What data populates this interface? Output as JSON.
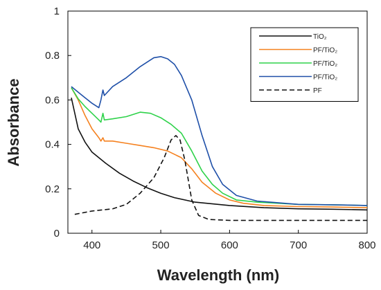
{
  "chart_data": {
    "type": "line",
    "title": "",
    "xlabel": "Wavelength (nm)",
    "ylabel": "Absorbance",
    "xlim": [
      365,
      800
    ],
    "ylim": [
      0,
      1
    ],
    "xticks": [
      400,
      500,
      600,
      700,
      800
    ],
    "yticks": [
      0,
      0.2,
      0.4,
      0.6,
      0.8,
      1
    ],
    "ytick_labels": [
      "0",
      "0.2",
      "0.4",
      "0.6",
      "0.8",
      "1"
    ],
    "grid": false,
    "legend_position": "top-right",
    "series": [
      {
        "name": "TiO₂",
        "color": "#111111",
        "dash": "solid",
        "points": [
          [
            370,
            0.61
          ],
          [
            380,
            0.47
          ],
          [
            390,
            0.41
          ],
          [
            400,
            0.365
          ],
          [
            420,
            0.315
          ],
          [
            440,
            0.27
          ],
          [
            460,
            0.235
          ],
          [
            480,
            0.205
          ],
          [
            500,
            0.18
          ],
          [
            520,
            0.16
          ],
          [
            550,
            0.14
          ],
          [
            600,
            0.125
          ],
          [
            650,
            0.115
          ],
          [
            700,
            0.11
          ],
          [
            750,
            0.108
          ],
          [
            800,
            0.105
          ]
        ]
      },
      {
        "name": "PF/TiO₂",
        "color": "#f5811f",
        "dash": "solid",
        "points": [
          [
            370,
            0.655
          ],
          [
            380,
            0.6
          ],
          [
            390,
            0.53
          ],
          [
            400,
            0.47
          ],
          [
            410,
            0.43
          ],
          [
            413,
            0.415
          ],
          [
            416,
            0.43
          ],
          [
            418,
            0.415
          ],
          [
            430,
            0.415
          ],
          [
            450,
            0.405
          ],
          [
            470,
            0.395
          ],
          [
            490,
            0.385
          ],
          [
            510,
            0.37
          ],
          [
            530,
            0.34
          ],
          [
            545,
            0.29
          ],
          [
            560,
            0.23
          ],
          [
            580,
            0.18
          ],
          [
            600,
            0.15
          ],
          [
            620,
            0.135
          ],
          [
            650,
            0.125
          ],
          [
            700,
            0.12
          ],
          [
            750,
            0.118
          ],
          [
            800,
            0.115
          ]
        ]
      },
      {
        "name": "PF/TiO₂",
        "color": "#2ed24a",
        "dash": "solid",
        "points": [
          [
            370,
            0.655
          ],
          [
            380,
            0.605
          ],
          [
            390,
            0.57
          ],
          [
            400,
            0.54
          ],
          [
            410,
            0.51
          ],
          [
            413,
            0.5
          ],
          [
            416,
            0.54
          ],
          [
            418,
            0.51
          ],
          [
            430,
            0.515
          ],
          [
            450,
            0.525
          ],
          [
            470,
            0.545
          ],
          [
            485,
            0.54
          ],
          [
            500,
            0.52
          ],
          [
            515,
            0.49
          ],
          [
            530,
            0.45
          ],
          [
            545,
            0.37
          ],
          [
            560,
            0.28
          ],
          [
            575,
            0.22
          ],
          [
            590,
            0.18
          ],
          [
            610,
            0.15
          ],
          [
            640,
            0.14
          ],
          [
            700,
            0.13
          ],
          [
            750,
            0.128
          ],
          [
            800,
            0.125
          ]
        ]
      },
      {
        "name": "PF/TiO₂",
        "color": "#1e4fa8",
        "dash": "solid",
        "points": [
          [
            370,
            0.66
          ],
          [
            380,
            0.635
          ],
          [
            390,
            0.61
          ],
          [
            400,
            0.585
          ],
          [
            410,
            0.565
          ],
          [
            413,
            0.6
          ],
          [
            416,
            0.645
          ],
          [
            418,
            0.62
          ],
          [
            430,
            0.66
          ],
          [
            450,
            0.7
          ],
          [
            470,
            0.75
          ],
          [
            490,
            0.79
          ],
          [
            500,
            0.795
          ],
          [
            510,
            0.785
          ],
          [
            520,
            0.76
          ],
          [
            530,
            0.71
          ],
          [
            545,
            0.6
          ],
          [
            560,
            0.44
          ],
          [
            575,
            0.3
          ],
          [
            590,
            0.22
          ],
          [
            610,
            0.17
          ],
          [
            640,
            0.145
          ],
          [
            700,
            0.13
          ],
          [
            750,
            0.128
          ],
          [
            800,
            0.125
          ]
        ]
      },
      {
        "name": "PF",
        "color": "#111111",
        "dash": "dashed",
        "points": [
          [
            375,
            0.085
          ],
          [
            400,
            0.1
          ],
          [
            430,
            0.11
          ],
          [
            450,
            0.13
          ],
          [
            470,
            0.18
          ],
          [
            490,
            0.25
          ],
          [
            505,
            0.34
          ],
          [
            515,
            0.42
          ],
          [
            522,
            0.44
          ],
          [
            528,
            0.42
          ],
          [
            535,
            0.33
          ],
          [
            545,
            0.15
          ],
          [
            555,
            0.08
          ],
          [
            570,
            0.062
          ],
          [
            600,
            0.058
          ],
          [
            700,
            0.058
          ],
          [
            800,
            0.058
          ]
        ]
      }
    ]
  }
}
